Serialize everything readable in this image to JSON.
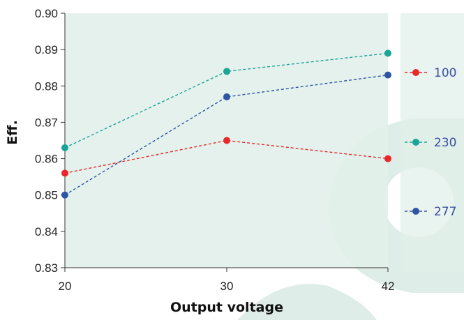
{
  "chart_data": {
    "type": "line",
    "title": "",
    "xlabel": "Output voltage",
    "ylabel": "Eff.",
    "x": [
      20,
      30,
      42
    ],
    "x_tick_labels": [
      "20",
      "30",
      "42"
    ],
    "y_tick_labels": [
      "0.83",
      "0.84",
      "0.85",
      "0.86",
      "0.87",
      "0.88",
      "0.89",
      "0.90"
    ],
    "ylim": [
      0.83,
      0.9
    ],
    "grid": false,
    "legend_position": "right",
    "line_style": "dashed",
    "series": [
      {
        "name": "100",
        "color": "#e8282b",
        "values": [
          0.856,
          0.865,
          0.86
        ]
      },
      {
        "name": "230",
        "color": "#1aa596",
        "values": [
          0.863,
          0.884,
          0.889
        ]
      },
      {
        "name": "277",
        "color": "#2e55a4",
        "values": [
          0.85,
          0.877,
          0.883
        ]
      }
    ]
  }
}
